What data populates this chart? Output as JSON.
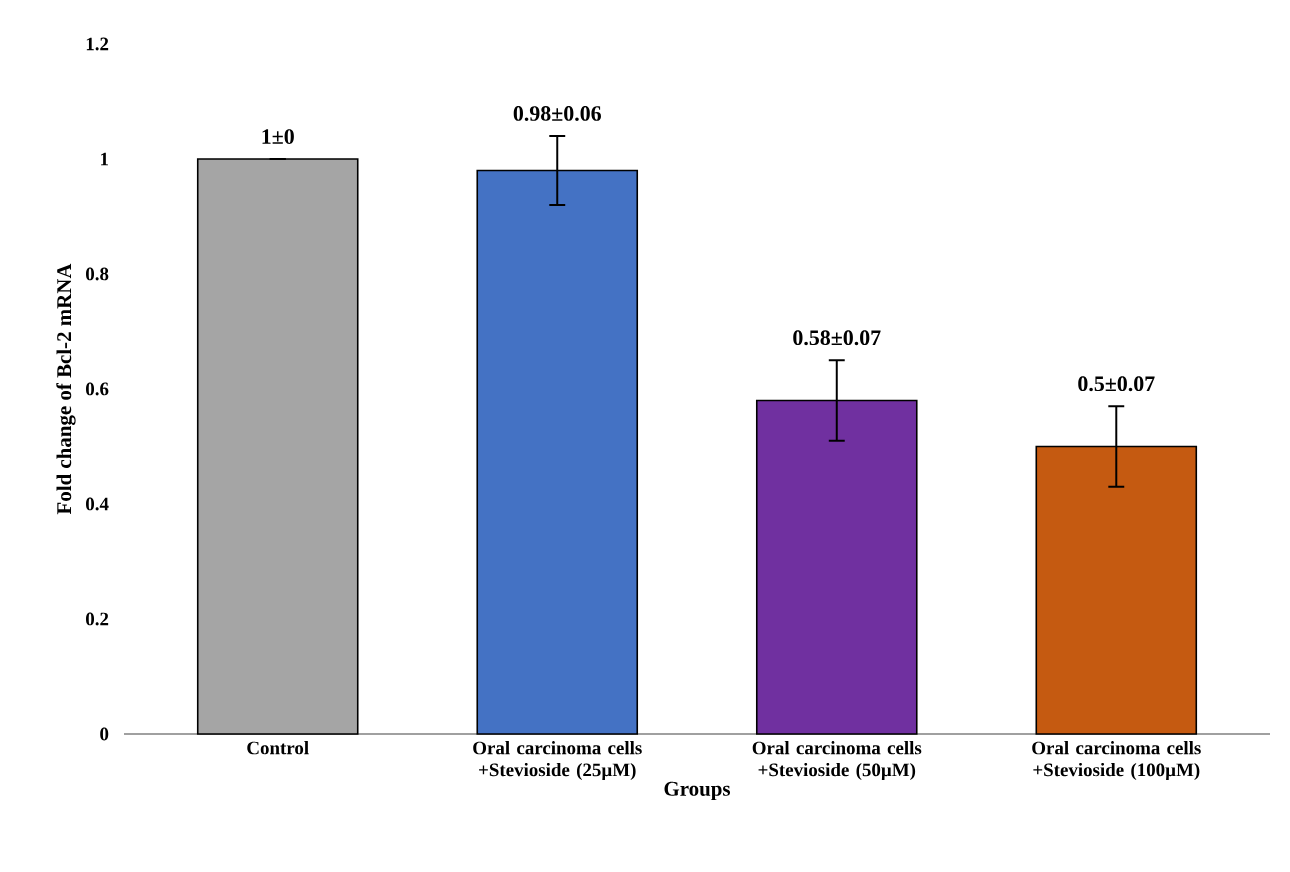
{
  "chart_data": {
    "type": "bar",
    "xlabel": "Groups",
    "ylabel": "Fold change of Bcl-2 mRNA",
    "categories": [
      "Control",
      "Oral carcinoma cells +Stevioside (25µM)",
      "Oral carcinoma cells +Stevioside (50µM)",
      "Oral carcinoma cells +Stevioside (100µM)"
    ],
    "values": [
      1,
      0.98,
      0.58,
      0.5
    ],
    "errors": [
      0,
      0.06,
      0.07,
      0.07
    ],
    "value_labels": [
      "1±0",
      "0.98±0.06",
      "0.58±0.07",
      "0.5±0.07"
    ],
    "colors": [
      "#a5a5a5",
      "#4472c4",
      "#7030a0",
      "#c55a11"
    ],
    "ylim": [
      0,
      1.2
    ],
    "yticks": [
      0,
      0.2,
      0.4,
      0.6,
      0.8,
      1,
      1.2
    ],
    "grid": false
  }
}
